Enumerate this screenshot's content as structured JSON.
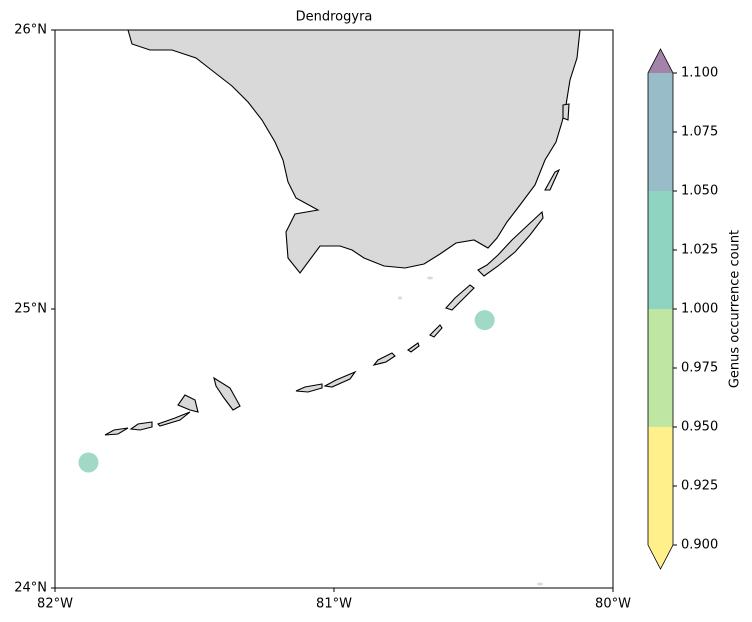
{
  "chart_data": {
    "type": "scatter",
    "title": "Dendrogyra",
    "x": [
      -81.88,
      -80.46
    ],
    "series": [
      {
        "values": [
          24.45,
          24.96
        ],
        "color_values": [
          1,
          1
        ],
        "color": "#8fd3bd"
      }
    ],
    "xlim": [
      -82,
      -80
    ],
    "ylim": [
      24,
      26
    ],
    "xticks": [
      {
        "value": -82,
        "label": "82°W"
      },
      {
        "value": -81,
        "label": "81°W"
      },
      {
        "value": -80,
        "label": "80°W"
      }
    ],
    "yticks": [
      {
        "value": 24,
        "label": "24°N"
      },
      {
        "value": 25,
        "label": "25°N"
      },
      {
        "value": 26,
        "label": "26°N"
      }
    ],
    "colorbar": {
      "label": "Genus occurrence count",
      "lim": [
        0.9,
        1.1
      ],
      "ticks": [
        {
          "value": 0.9,
          "label": "0.900"
        },
        {
          "value": 0.925,
          "label": "0.925"
        },
        {
          "value": 0.95,
          "label": "0.950"
        },
        {
          "value": 0.975,
          "label": "0.975"
        },
        {
          "value": 1.0,
          "label": "1.000"
        },
        {
          "value": 1.025,
          "label": "1.025"
        },
        {
          "value": 1.05,
          "label": "1.050"
        },
        {
          "value": 1.075,
          "label": "1.075"
        },
        {
          "value": 1.1,
          "label": "1.100"
        }
      ],
      "colors": [
        "#fff08c",
        "#fff08c",
        "#bfe6a2",
        "#bfe6a2",
        "#8fd4c0",
        "#8fd4c0",
        "#98bcc8",
        "#98bcc8",
        "#9fa2c6",
        "#9fa2c6",
        "#a383a9",
        "#a383a9"
      ],
      "extend": "both"
    }
  }
}
